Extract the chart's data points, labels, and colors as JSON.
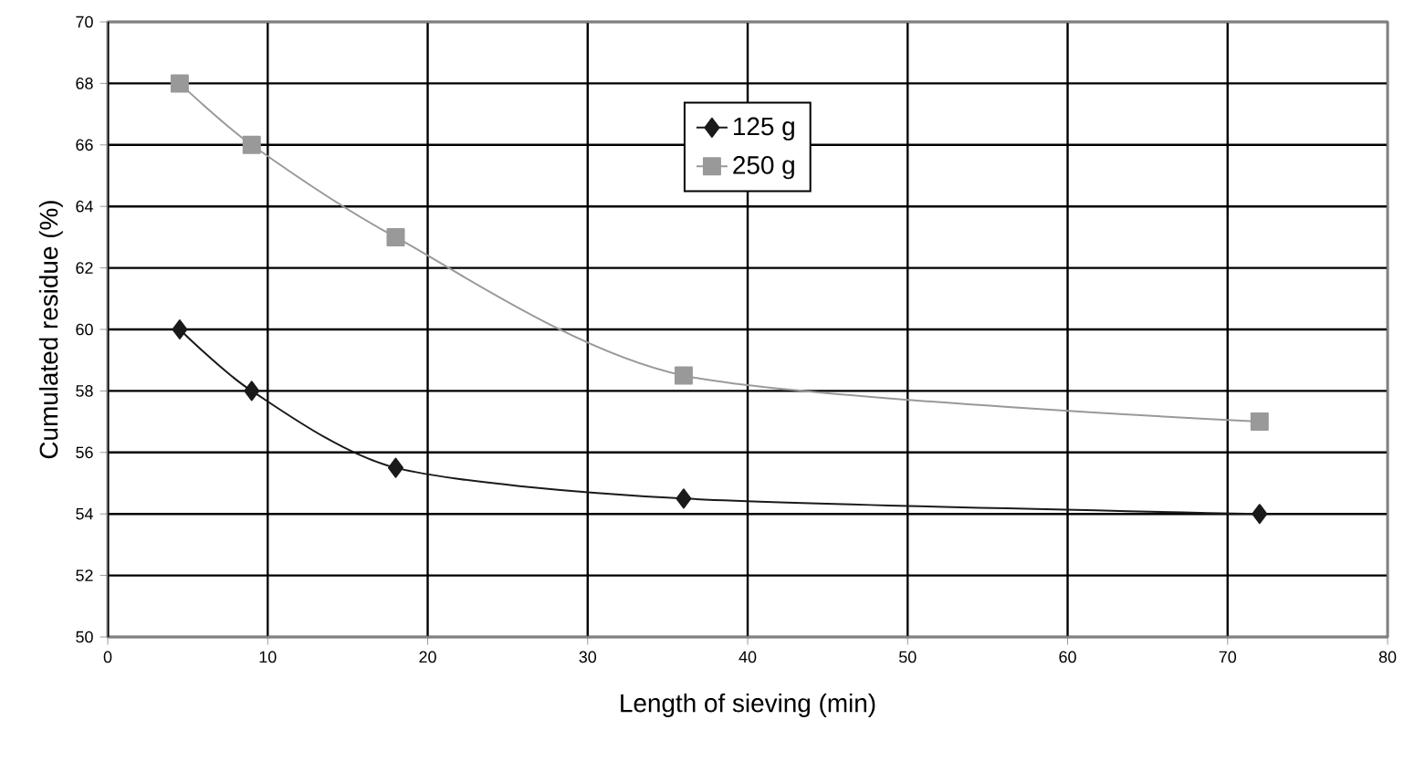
{
  "chart_data": {
    "type": "line",
    "xlabel": "Length of sieving (min)",
    "ylabel": "Cumulated residue (%)",
    "xlim": [
      0,
      80
    ],
    "xticks": [
      0,
      10,
      20,
      30,
      40,
      50,
      60,
      70,
      80
    ],
    "ylim": [
      50,
      70
    ],
    "yticks": [
      50,
      52,
      54,
      56,
      58,
      60,
      62,
      64,
      66,
      68,
      70
    ],
    "grid": true,
    "legend": "top",
    "line_style": "solid",
    "series": [
      {
        "name": "125 g",
        "color": "#1a1a1a",
        "marker": "diamond",
        "x": [
          4.5,
          9,
          18,
          36,
          72
        ],
        "values": [
          60,
          58,
          55.5,
          54.5,
          54
        ]
      },
      {
        "name": "250 g",
        "color": "#999999",
        "marker": "square",
        "x": [
          4.5,
          9,
          18,
          36,
          72
        ],
        "values": [
          68,
          66,
          63,
          58.5,
          57
        ]
      }
    ]
  }
}
